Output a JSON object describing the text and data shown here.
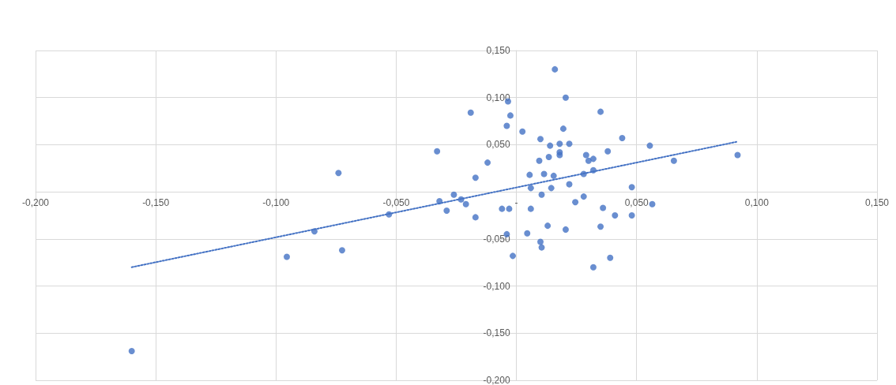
{
  "chart_data": {
    "type": "scatter",
    "xlim": [
      -0.2,
      0.15
    ],
    "ylim": [
      -0.2,
      0.15
    ],
    "xticks": [
      {
        "value": -0.2,
        "label": "-0,200"
      },
      {
        "value": -0.15,
        "label": "-0,150"
      },
      {
        "value": -0.1,
        "label": "-0,100"
      },
      {
        "value": -0.05,
        "label": "-0,050"
      },
      {
        "value": 0,
        "label": "-"
      },
      {
        "value": 0.05,
        "label": "0,050"
      },
      {
        "value": 0.1,
        "label": "0,100"
      },
      {
        "value": 0.15,
        "label": "0,150"
      }
    ],
    "yticks": [
      {
        "value": -0.2,
        "label": "-0,200"
      },
      {
        "value": -0.15,
        "label": "-0,150"
      },
      {
        "value": -0.1,
        "label": "-0,100"
      },
      {
        "value": -0.05,
        "label": "-0,050"
      },
      {
        "value": 0,
        "label": null
      },
      {
        "value": 0.05,
        "label": "0,050"
      },
      {
        "value": 0.1,
        "label": "0,100"
      },
      {
        "value": 0.15,
        "label": "0,150"
      }
    ],
    "grid": true,
    "marker": "circle",
    "series": [
      {
        "color": "#4472c4",
        "x": [
          -0.16,
          -0.0955,
          -0.0725,
          -0.084,
          -0.074,
          -0.053,
          -0.033,
          -0.032,
          -0.029,
          -0.026,
          -0.023,
          -0.021,
          -0.017,
          -0.017,
          -0.012,
          -0.019,
          -0.006,
          -0.003,
          -0.0035,
          -0.0025,
          -0.004,
          -0.0015,
          -0.004,
          0.0025,
          0.0045,
          0.0055,
          0.006,
          0.006,
          0.01,
          0.0105,
          0.0105,
          0.01,
          0.0095,
          0.0115,
          0.013,
          0.0135,
          0.014,
          0.0145,
          0.016,
          0.0155,
          0.018,
          0.018,
          0.018,
          0.0195,
          0.0205,
          0.0205,
          0.022,
          0.022,
          0.0245,
          0.028,
          0.028,
          0.029,
          0.03,
          0.032,
          0.032,
          0.032,
          0.035,
          0.035,
          0.036,
          0.038,
          0.039,
          0.041,
          0.044,
          0.048,
          0.048,
          0.0555,
          0.0565,
          0.0655,
          0.092
        ],
        "values": [
          -0.169,
          -0.069,
          -0.062,
          -0.042,
          0.02,
          -0.024,
          0.043,
          -0.01,
          -0.02,
          -0.003,
          -0.008,
          -0.013,
          -0.027,
          0.015,
          0.031,
          0.084,
          -0.018,
          -0.018,
          0.096,
          0.081,
          0.07,
          -0.068,
          -0.045,
          0.064,
          -0.044,
          0.018,
          -0.018,
          0.004,
          -0.053,
          -0.059,
          -0.003,
          0.056,
          0.033,
          0.019,
          -0.036,
          0.037,
          0.049,
          0.004,
          0.13,
          0.017,
          0.051,
          0.042,
          0.039,
          0.067,
          0.1,
          -0.04,
          0.051,
          0.008,
          -0.011,
          0.019,
          -0.005,
          0.039,
          0.033,
          0.035,
          0.023,
          -0.08,
          0.085,
          -0.037,
          -0.017,
          0.043,
          -0.07,
          -0.025,
          0.057,
          0.005,
          -0.025,
          0.049,
          -0.013,
          0.033,
          0.039
        ]
      },
      {
        "type": "line",
        "color": "#4472c4",
        "line_style": "dotted",
        "marker": "none",
        "x": [
          -0.16,
          0.0915
        ],
        "values": [
          -0.08,
          0.053
        ]
      }
    ]
  }
}
